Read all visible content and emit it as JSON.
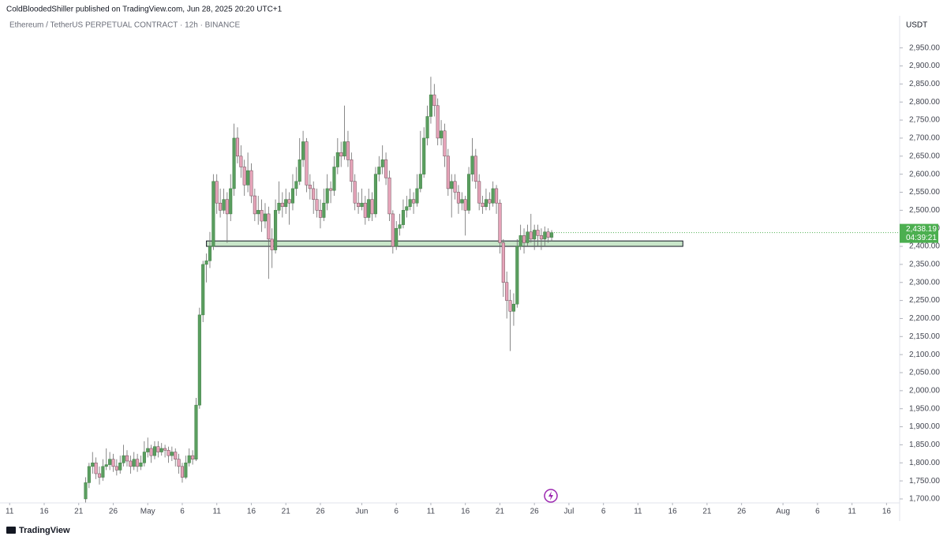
{
  "header": {
    "publisher": "ColdBloodedShiller published on TradingView.com, Jun 28, 2025 20:20 UTC+1"
  },
  "footer": {
    "brand": "TradingView"
  },
  "chart_data": {
    "type": "candlestick",
    "title": "Ethereum / TetherUS PERPETUAL CONTRACT · 12h · BINANCE",
    "currency": "USDT",
    "up_color": "#5a9e5f",
    "down_color": "#e6a4b9",
    "xlim": [
      -1.4,
      128.9
    ],
    "xticks": [
      {
        "value": 0,
        "label": "11"
      },
      {
        "value": 5,
        "label": "16"
      },
      {
        "value": 10,
        "label": "21"
      },
      {
        "value": 15,
        "label": "26"
      },
      {
        "value": 20,
        "label": "May"
      },
      {
        "value": 25,
        "label": "6"
      },
      {
        "value": 30,
        "label": "11"
      },
      {
        "value": 35,
        "label": "16"
      },
      {
        "value": 40,
        "label": "21"
      },
      {
        "value": 45,
        "label": "26"
      },
      {
        "value": 51,
        "label": "Jun"
      },
      {
        "value": 56,
        "label": "6"
      },
      {
        "value": 61,
        "label": "11"
      },
      {
        "value": 66,
        "label": "16"
      },
      {
        "value": 71,
        "label": "21"
      },
      {
        "value": 76,
        "label": "26"
      },
      {
        "value": 81,
        "label": "Jul"
      },
      {
        "value": 86,
        "label": "6"
      },
      {
        "value": 91,
        "label": "11"
      },
      {
        "value": 96,
        "label": "16"
      },
      {
        "value": 101,
        "label": "21"
      },
      {
        "value": 106,
        "label": "26"
      },
      {
        "value": 112,
        "label": "Aug"
      },
      {
        "value": 117,
        "label": "6"
      },
      {
        "value": 122,
        "label": "11"
      },
      {
        "value": 127,
        "label": "16"
      }
    ],
    "ylim": [
      1689,
      3039
    ],
    "yticks": [
      {
        "value": 1700,
        "label": "1,700.00"
      },
      {
        "value": 1750,
        "label": "1,750.00"
      },
      {
        "value": 1800,
        "label": "1,800.00"
      },
      {
        "value": 1850,
        "label": "1,850.00"
      },
      {
        "value": 1900,
        "label": "1,900.00"
      },
      {
        "value": 1950,
        "label": "1,950.00"
      },
      {
        "value": 2000,
        "label": "2,000.00"
      },
      {
        "value": 2050,
        "label": "2,050.00"
      },
      {
        "value": 2100,
        "label": "2,100.00"
      },
      {
        "value": 2150,
        "label": "2,150.00"
      },
      {
        "value": 2200,
        "label": "2,200.00"
      },
      {
        "value": 2250,
        "label": "2,250.00"
      },
      {
        "value": 2300,
        "label": "2,300.00"
      },
      {
        "value": 2350,
        "label": "2,350.00"
      },
      {
        "value": 2400,
        "label": "2,400.00"
      },
      {
        "value": 2450,
        "label": "2,450.00"
      },
      {
        "value": 2500,
        "label": "2,500.00"
      },
      {
        "value": 2550,
        "label": "2,550.00"
      },
      {
        "value": 2600,
        "label": "2,600.00"
      },
      {
        "value": 2650,
        "label": "2,650.00"
      },
      {
        "value": 2700,
        "label": "2,700.00"
      },
      {
        "value": 2750,
        "label": "2,750.00"
      },
      {
        "value": 2800,
        "label": "2,800.00"
      },
      {
        "value": 2850,
        "label": "2,850.00"
      },
      {
        "value": 2900,
        "label": "2,900.00"
      },
      {
        "value": 2950,
        "label": "2,950.00"
      }
    ],
    "last_price": {
      "value": 2438.19,
      "label": "2,438.19",
      "countdown": "04:39:21",
      "color": "#4caf50"
    },
    "zone": {
      "low": 2400,
      "high": 2415,
      "x": [
        28.5,
        97.5
      ],
      "color": "#c8e6c9"
    },
    "x": [
      11,
      11.5,
      12,
      12.5,
      13,
      13.5,
      14,
      14.5,
      15,
      15.5,
      16,
      16.5,
      17,
      17.5,
      18,
      18.5,
      19,
      19.5,
      20,
      20.5,
      21,
      21.5,
      22,
      22.5,
      23,
      23.5,
      24,
      24.5,
      25,
      25.5,
      26,
      26.5,
      27,
      27.5,
      28,
      28.5,
      29,
      29.5,
      30,
      30.5,
      31,
      31.5,
      32,
      32.5,
      33,
      33.5,
      34,
      34.5,
      35,
      35.5,
      36,
      36.5,
      37,
      37.5,
      38,
      38.5,
      39,
      39.5,
      40,
      40.5,
      41,
      41.5,
      42,
      42.5,
      43,
      43.5,
      44,
      44.5,
      45,
      45.5,
      46,
      46.5,
      47,
      47.5,
      48,
      48.5,
      49,
      49.5,
      50,
      50.5,
      51,
      51.5,
      52,
      52.5,
      53,
      53.5,
      54,
      54.5,
      55,
      55.5,
      56,
      56.5,
      57,
      57.5,
      58,
      58.5,
      59,
      59.5,
      60,
      60.5,
      61,
      61.5,
      62,
      62.5,
      63,
      63.5,
      64,
      64.5,
      65,
      65.5,
      66,
      66.5,
      67,
      67.5,
      68,
      68.5,
      69,
      69.5,
      70,
      70.5,
      71,
      71.5,
      72,
      72.5,
      73,
      73.5,
      74,
      74.5,
      75,
      75.5,
      76,
      76.5,
      77,
      77.5,
      78,
      78.5
    ],
    "open": [
      1700,
      1745,
      1790,
      1800,
      1770,
      1760,
      1790,
      1795,
      1810,
      1790,
      1780,
      1800,
      1820,
      1805,
      1790,
      1810,
      1790,
      1800,
      1830,
      1840,
      1820,
      1845,
      1830,
      1840,
      1835,
      1820,
      1830,
      1810,
      1790,
      1760,
      1800,
      1820,
      1810,
      1960,
      2210,
      2350,
      2360,
      2400,
      2580,
      2520,
      2500,
      2530,
      2490,
      2560,
      2700,
      2650,
      2620,
      2570,
      2610,
      2540,
      2490,
      2500,
      2470,
      2490,
      2420,
      2390,
      2500,
      2520,
      2510,
      2530,
      2520,
      2560,
      2580,
      2640,
      2690,
      2570,
      2560,
      2530,
      2500,
      2480,
      2520,
      2560,
      2555,
      2620,
      2660,
      2650,
      2690,
      2640,
      2580,
      2520,
      2510,
      2520,
      2480,
      2530,
      2490,
      2600,
      2620,
      2640,
      2590,
      2490,
      2400,
      2450,
      2460,
      2500,
      2510,
      2530,
      2520,
      2560,
      2600,
      2700,
      2760,
      2820,
      2790,
      2700,
      2720,
      2650,
      2560,
      2580,
      2550,
      2520,
      2530,
      2500,
      2600,
      2650,
      2580,
      2520,
      2510,
      2530,
      2520,
      2560,
      2520,
      2410,
      2300,
      2250,
      2220,
      2240,
      2400,
      2430,
      2410,
      2440,
      2420,
      2445,
      2430,
      2420,
      2440,
      2425
    ],
    "high": [
      1760,
      1800,
      1830,
      1815,
      1790,
      1810,
      1840,
      1830,
      1825,
      1810,
      1820,
      1850,
      1835,
      1820,
      1830,
      1825,
      1820,
      1860,
      1870,
      1850,
      1860,
      1860,
      1855,
      1850,
      1845,
      1845,
      1840,
      1825,
      1800,
      1820,
      1840,
      1835,
      1980,
      2230,
      2360,
      2380,
      2440,
      2600,
      2600,
      2560,
      2560,
      2550,
      2600,
      2740,
      2730,
      2680,
      2640,
      2660,
      2630,
      2560,
      2540,
      2530,
      2520,
      2510,
      2450,
      2530,
      2580,
      2550,
      2560,
      2550,
      2600,
      2620,
      2700,
      2720,
      2700,
      2600,
      2580,
      2560,
      2530,
      2560,
      2600,
      2580,
      2650,
      2700,
      2690,
      2790,
      2720,
      2660,
      2600,
      2550,
      2560,
      2540,
      2560,
      2550,
      2620,
      2650,
      2680,
      2660,
      2610,
      2500,
      2470,
      2490,
      2530,
      2540,
      2560,
      2550,
      2600,
      2720,
      2730,
      2790,
      2870,
      2850,
      2810,
      2750,
      2740,
      2670,
      2600,
      2600,
      2570,
      2550,
      2540,
      2620,
      2700,
      2670,
      2600,
      2540,
      2560,
      2550,
      2580,
      2570,
      2530,
      2420,
      2330,
      2280,
      2270,
      2420,
      2460,
      2450,
      2460,
      2490,
      2460,
      2460,
      2450,
      2455,
      2450,
      2445
    ],
    "low": [
      1690,
      1730,
      1770,
      1755,
      1740,
      1750,
      1780,
      1780,
      1775,
      1765,
      1770,
      1790,
      1790,
      1770,
      1780,
      1775,
      1780,
      1790,
      1815,
      1800,
      1810,
      1815,
      1820,
      1815,
      1800,
      1805,
      1790,
      1770,
      1745,
      1755,
      1790,
      1795,
      1805,
      1950,
      2190,
      2300,
      2340,
      2390,
      2490,
      2480,
      2490,
      2410,
      2470,
      2540,
      2630,
      2590,
      2540,
      2550,
      2520,
      2470,
      2460,
      2440,
      2450,
      2310,
      2340,
      2380,
      2490,
      2480,
      2490,
      2460,
      2500,
      2540,
      2570,
      2620,
      2550,
      2530,
      2490,
      2480,
      2450,
      2470,
      2500,
      2520,
      2540,
      2600,
      2620,
      2640,
      2620,
      2550,
      2500,
      2490,
      2500,
      2460,
      2470,
      2470,
      2480,
      2580,
      2600,
      2570,
      2470,
      2380,
      2390,
      2430,
      2450,
      2480,
      2500,
      2490,
      2510,
      2550,
      2590,
      2680,
      2740,
      2760,
      2680,
      2680,
      2620,
      2540,
      2480,
      2530,
      2490,
      2500,
      2430,
      2490,
      2580,
      2560,
      2500,
      2490,
      2500,
      2500,
      2510,
      2490,
      2380,
      2260,
      2200,
      2110,
      2180,
      2230,
      2390,
      2380,
      2400,
      2410,
      2390,
      2400,
      2390,
      2400,
      2410,
      2415
    ],
    "close": [
      1745,
      1790,
      1800,
      1770,
      1760,
      1790,
      1795,
      1810,
      1790,
      1780,
      1800,
      1820,
      1805,
      1790,
      1810,
      1790,
      1800,
      1830,
      1840,
      1820,
      1845,
      1830,
      1840,
      1835,
      1820,
      1830,
      1810,
      1790,
      1760,
      1800,
      1820,
      1810,
      1960,
      2210,
      2350,
      2360,
      2400,
      2580,
      2520,
      2500,
      2530,
      2490,
      2560,
      2700,
      2650,
      2620,
      2570,
      2610,
      2540,
      2490,
      2500,
      2470,
      2490,
      2420,
      2390,
      2500,
      2520,
      2510,
      2530,
      2520,
      2560,
      2580,
      2640,
      2690,
      2570,
      2560,
      2530,
      2500,
      2480,
      2520,
      2560,
      2555,
      2620,
      2660,
      2650,
      2690,
      2640,
      2580,
      2520,
      2510,
      2520,
      2480,
      2530,
      2490,
      2600,
      2620,
      2640,
      2590,
      2490,
      2400,
      2450,
      2460,
      2500,
      2510,
      2530,
      2520,
      2560,
      2600,
      2700,
      2760,
      2820,
      2790,
      2700,
      2720,
      2650,
      2560,
      2580,
      2550,
      2520,
      2530,
      2500,
      2600,
      2650,
      2580,
      2520,
      2510,
      2530,
      2520,
      2560,
      2520,
      2410,
      2300,
      2250,
      2220,
      2240,
      2400,
      2430,
      2410,
      2440,
      2420,
      2445,
      2430,
      2420,
      2440,
      2425,
      2438
    ]
  }
}
